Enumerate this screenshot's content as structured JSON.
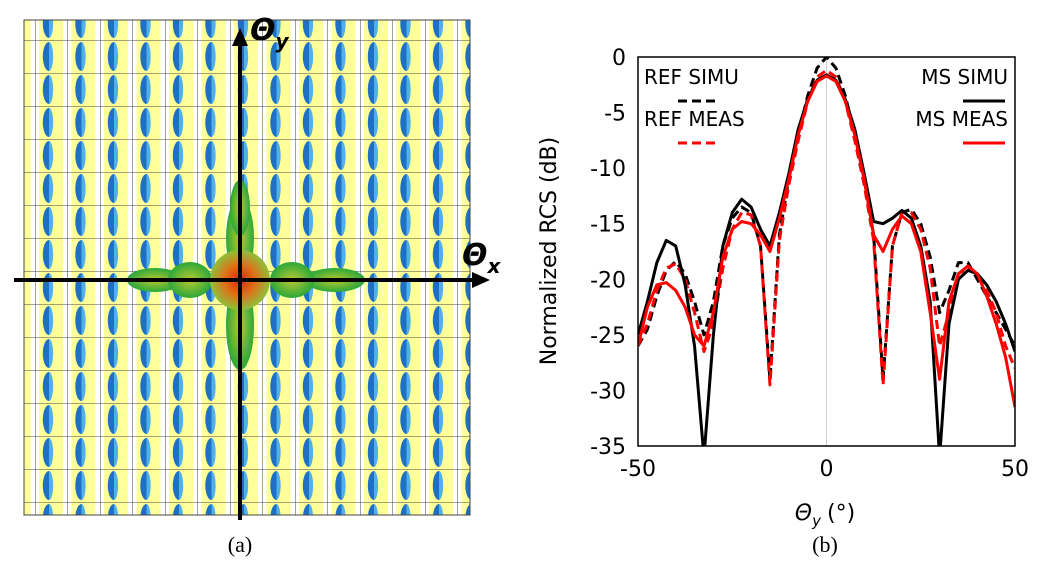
{
  "figure": {
    "panel_a": {
      "axis_y": {
        "symbol": "Θ",
        "subscript": "y"
      },
      "axis_x": {
        "symbol": "Θ",
        "subscript": "x"
      }
    },
    "caption_a": "(a)",
    "caption_b": "(b)"
  },
  "chart_data": {
    "type": "line",
    "ylabel": "Normalized RCS (dB)",
    "xlabel": {
      "symbol": "Θ",
      "subscript": "y",
      "unit": "(°)"
    },
    "xlim": [
      -50,
      50
    ],
    "xticks": [
      -50,
      0,
      50
    ],
    "ylim": [
      -35,
      0
    ],
    "yticks": [
      -35,
      -30,
      -25,
      -20,
      -15,
      -10,
      -5,
      0
    ],
    "grid": "x-zero",
    "x": [
      -50,
      -47.5,
      -45,
      -42.5,
      -40,
      -37.5,
      -35,
      -32.5,
      -30,
      -27.5,
      -25,
      -22.5,
      -20,
      -17.5,
      -15,
      -12.5,
      -10,
      -7.5,
      -5,
      -2.5,
      0,
      2.5,
      5,
      7.5,
      10,
      12.5,
      15,
      17.5,
      20,
      22.5,
      25,
      27.5,
      30,
      32.5,
      35,
      37.5,
      40,
      42.5,
      45,
      47.5,
      50
    ],
    "series": [
      {
        "name": "REF SIMU",
        "color": "#000000",
        "dashed": true,
        "values": [
          -26,
          -24.5,
          -21.5,
          -19.2,
          -18.4,
          -19.5,
          -22,
          -25,
          -22,
          -17,
          -14.5,
          -13.5,
          -14,
          -17,
          -29,
          -16,
          -11,
          -7,
          -3.5,
          -1,
          0,
          -1,
          -3.5,
          -7,
          -11,
          -16,
          -29,
          -17,
          -14,
          -13.7,
          -15,
          -18,
          -23,
          -21,
          -18.5,
          -18.5,
          -20,
          -21.5,
          -23,
          -24.5,
          -26
        ]
      },
      {
        "name": "REF MEAS",
        "color": "#ff0000",
        "dashed": true,
        "values": [
          -26,
          -24,
          -21,
          -19,
          -18.6,
          -20,
          -23,
          -26.5,
          -24,
          -19,
          -15.5,
          -14,
          -14.2,
          -17,
          -29.5,
          -16.5,
          -11.5,
          -7.5,
          -4,
          -1.8,
          -1.2,
          -1.8,
          -4,
          -7.5,
          -11.5,
          -16.5,
          -29.5,
          -17,
          -14,
          -14,
          -15.5,
          -19,
          -26,
          -23,
          -19.5,
          -19,
          -19.5,
          -21,
          -23,
          -26,
          -28
        ]
      },
      {
        "name": "MS SIMU",
        "color": "#000000",
        "dashed": false,
        "values": [
          -25,
          -22,
          -18.5,
          -16.5,
          -17,
          -20.5,
          -26,
          -36,
          -25,
          -17,
          -14,
          -12.8,
          -13.5,
          -15.5,
          -17,
          -14,
          -10.5,
          -6.5,
          -3.8,
          -2.1,
          -1.6,
          -2.1,
          -3.8,
          -6.5,
          -10.5,
          -14.8,
          -15,
          -14.5,
          -13.8,
          -14.5,
          -17,
          -22,
          -36,
          -24,
          -20,
          -19.2,
          -19.5,
          -20.5,
          -22,
          -24,
          -26.5
        ]
      },
      {
        "name": "MS MEAS",
        "color": "#ff0000",
        "dashed": false,
        "values": [
          -26,
          -22.5,
          -20.5,
          -20.3,
          -21,
          -22.5,
          -25,
          -26,
          -23,
          -18,
          -15.5,
          -14.8,
          -15,
          -16,
          -17.5,
          -14.5,
          -11,
          -7,
          -4,
          -2.2,
          -1.7,
          -2.2,
          -4,
          -7,
          -11,
          -16,
          -17.5,
          -15.5,
          -14.3,
          -15,
          -17.5,
          -23,
          -29,
          -22,
          -19.5,
          -18.8,
          -19.5,
          -21.5,
          -24,
          -27,
          -31.5
        ]
      }
    ]
  }
}
